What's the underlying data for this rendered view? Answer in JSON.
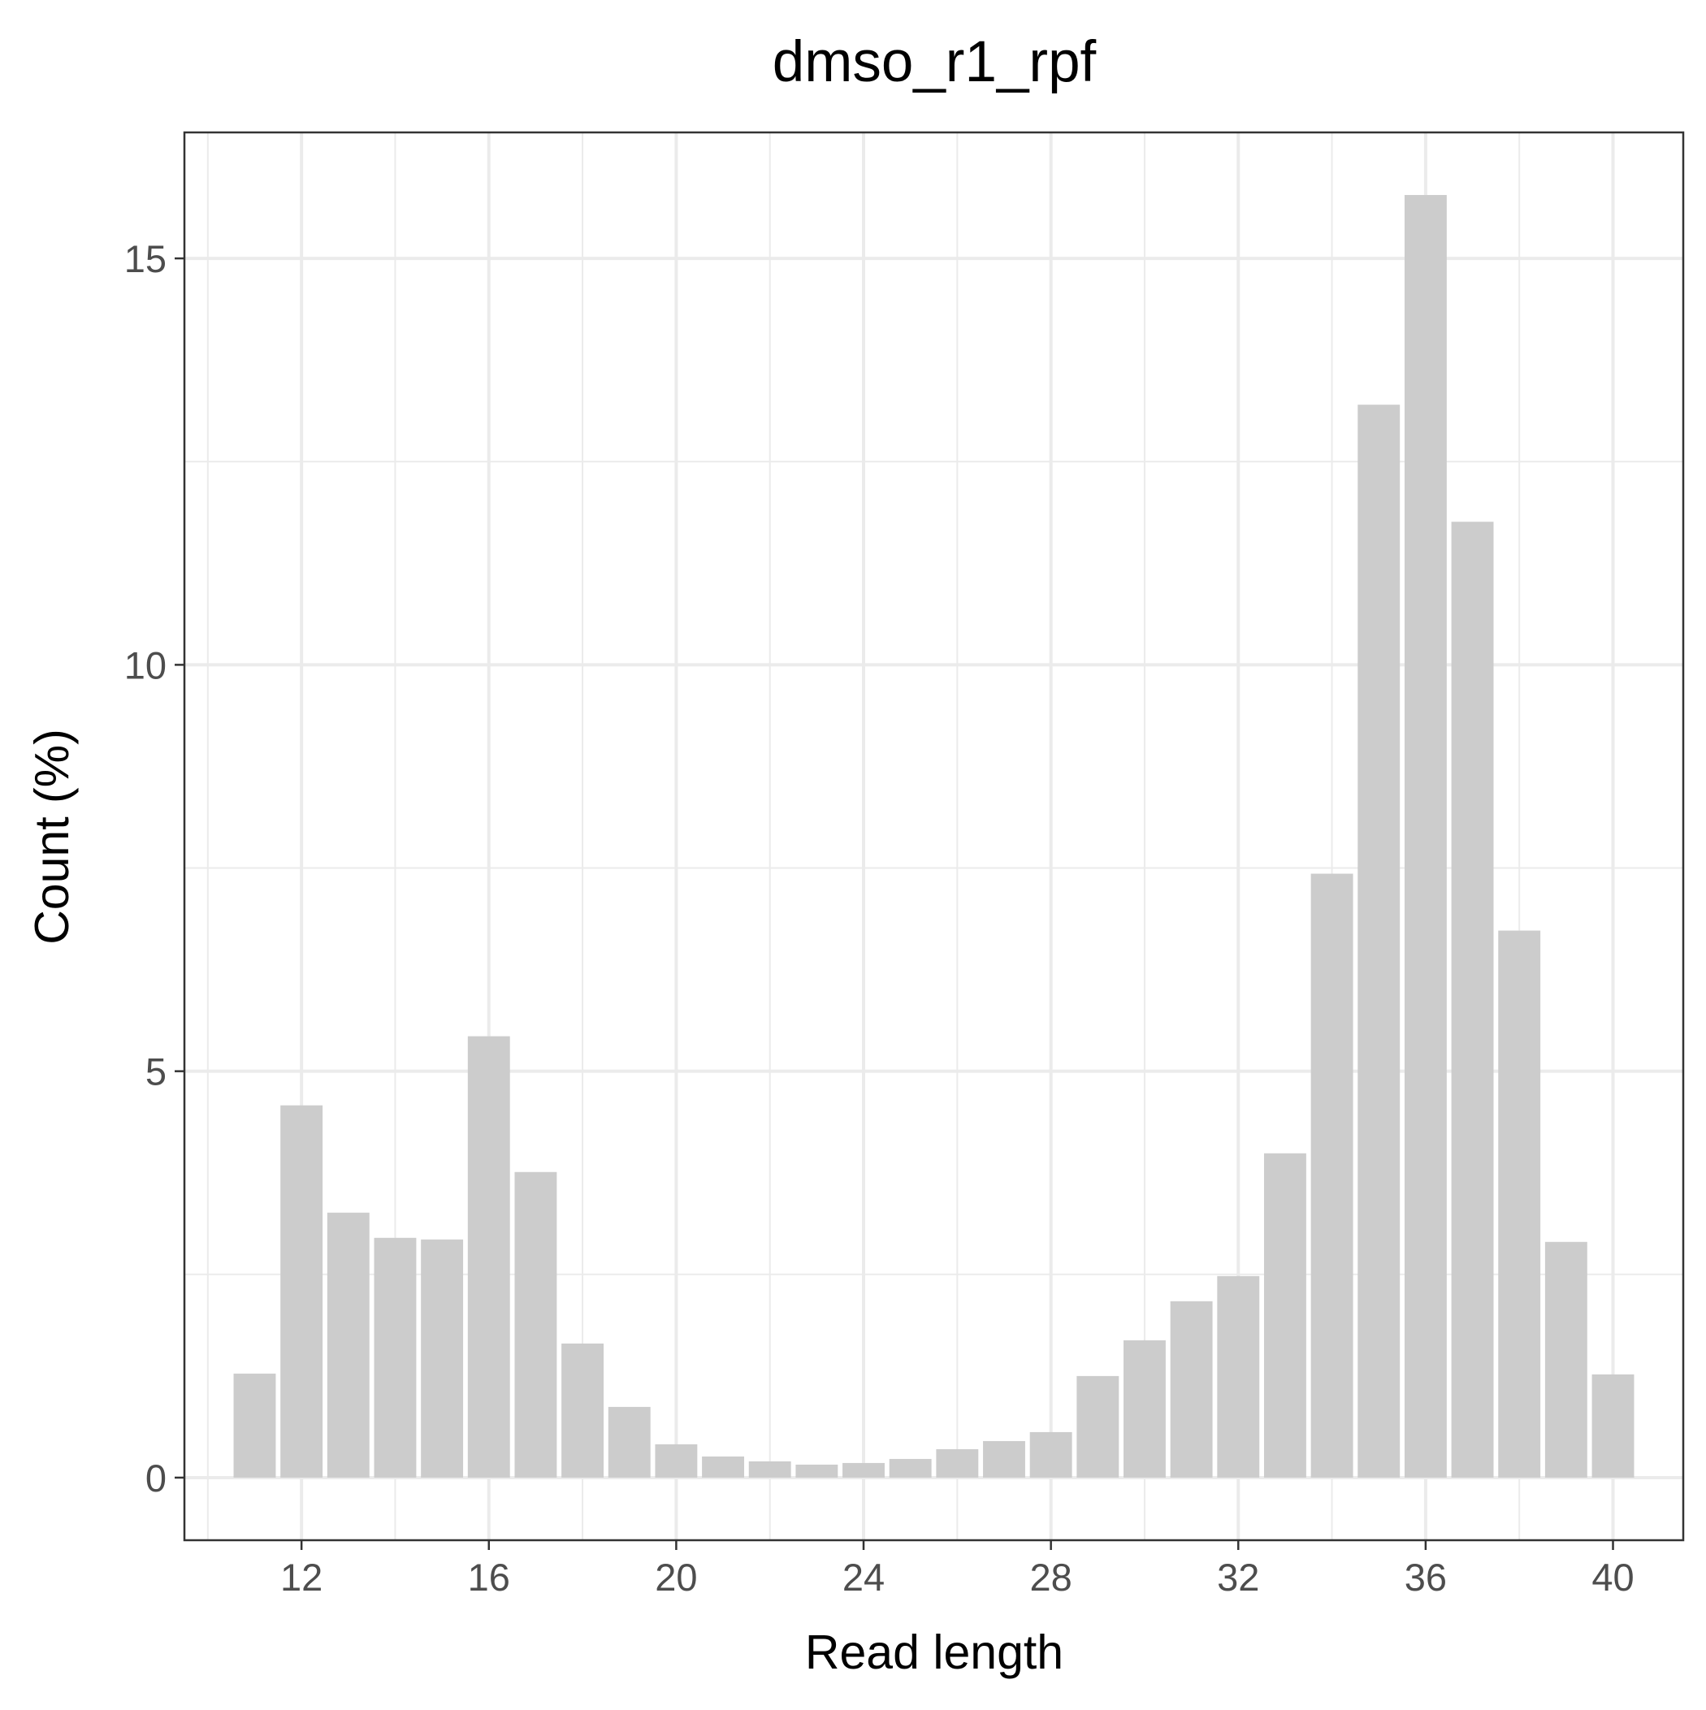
{
  "chart_data": {
    "type": "bar",
    "title": "dmso_r1_rpf",
    "xlabel": "Read length",
    "ylabel": "Count (%)",
    "x": [
      11,
      12,
      13,
      14,
      15,
      16,
      17,
      18,
      19,
      20,
      21,
      22,
      23,
      24,
      25,
      26,
      27,
      28,
      29,
      30,
      31,
      32,
      33,
      34,
      35,
      36,
      37,
      38,
      39,
      40
    ],
    "values": [
      1.28,
      4.58,
      3.26,
      2.95,
      2.93,
      5.43,
      3.76,
      1.65,
      0.87,
      0.41,
      0.26,
      0.2,
      0.16,
      0.18,
      0.23,
      0.35,
      0.45,
      0.56,
      1.25,
      1.69,
      2.17,
      2.48,
      3.99,
      7.43,
      13.2,
      15.78,
      11.76,
      6.73,
      2.9,
      1.27
    ],
    "xlim": [
      9.5,
      41.5
    ],
    "ylim": [
      -0.77,
      16.55
    ],
    "xticks": [
      "12",
      "16",
      "20",
      "24",
      "28",
      "32",
      "36",
      "40"
    ],
    "yticks": [
      "0",
      "5",
      "10",
      "15"
    ],
    "bar_color": "#cccccc",
    "grid": true,
    "theme": "bw"
  }
}
